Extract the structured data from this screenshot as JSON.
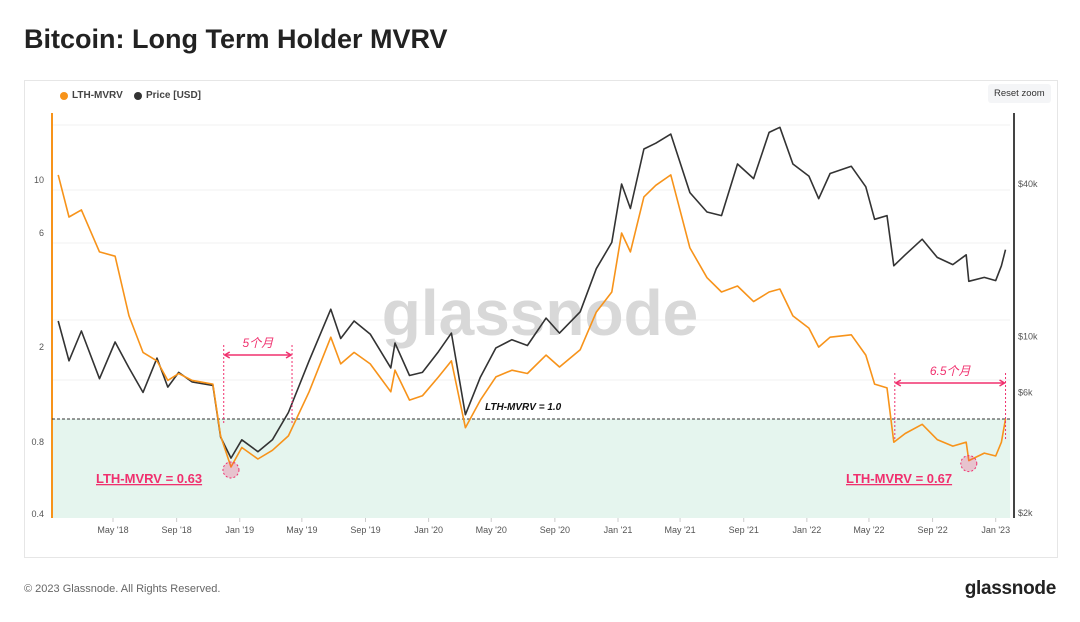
{
  "title": "Bitcoin: Long Term Holder MVRV",
  "reset_zoom": "Reset zoom",
  "footer": "© 2023 Glassnode. All Rights Reserved.",
  "brand": "glassnode",
  "watermark": "glassnode",
  "chart_data": {
    "type": "line",
    "title": "Bitcoin: Long Term Holder MVRV",
    "legend": [
      {
        "name": "LTH-MVRV",
        "color": "#f7931a"
      },
      {
        "name": "Price [USD]",
        "color": "#333333"
      }
    ],
    "x_ticks": [
      {
        "date": "2018-05-01",
        "label": "May '18"
      },
      {
        "date": "2018-09-01",
        "label": "Sep '18"
      },
      {
        "date": "2019-01-01",
        "label": "Jan '19"
      },
      {
        "date": "2019-05-01",
        "label": "May '19"
      },
      {
        "date": "2019-09-01",
        "label": "Sep '19"
      },
      {
        "date": "2020-01-01",
        "label": "Jan '20"
      },
      {
        "date": "2020-05-01",
        "label": "May '20"
      },
      {
        "date": "2020-09-01",
        "label": "Sep '20"
      },
      {
        "date": "2021-01-01",
        "label": "Jan '21"
      },
      {
        "date": "2021-05-01",
        "label": "May '21"
      },
      {
        "date": "2021-09-01",
        "label": "Sep '21"
      },
      {
        "date": "2022-01-01",
        "label": "Jan '22"
      },
      {
        "date": "2022-05-01",
        "label": "May '22"
      },
      {
        "date": "2022-09-01",
        "label": "Sep '22"
      },
      {
        "date": "2023-01-01",
        "label": "Jan '23"
      }
    ],
    "left_axis": {
      "scale": "log",
      "range": [
        0.4,
        16
      ],
      "ticks": [
        {
          "v": 10,
          "label": "10"
        },
        {
          "v": 6,
          "label": "6"
        },
        {
          "v": 2,
          "label": "2"
        },
        {
          "v": 0.8,
          "label": "0.8"
        },
        {
          "v": 0.4,
          "label": "0.4"
        }
      ]
    },
    "right_axis": {
      "scale": "log",
      "range": [
        2000,
        75000
      ],
      "ticks": [
        {
          "v": 40000,
          "label": "$40k"
        },
        {
          "v": 10000,
          "label": "$10k"
        },
        {
          "v": 6000,
          "label": "$6k"
        },
        {
          "v": 2000,
          "label": "$2k"
        }
      ]
    },
    "series": [
      {
        "name": "Price [USD]",
        "axis": "right",
        "color": "#333333",
        "points": [
          [
            "2018-01-15",
            11500
          ],
          [
            "2018-02-05",
            8000
          ],
          [
            "2018-03-01",
            10500
          ],
          [
            "2018-04-05",
            6800
          ],
          [
            "2018-05-05",
            9500
          ],
          [
            "2018-06-01",
            7500
          ],
          [
            "2018-06-28",
            6000
          ],
          [
            "2018-07-25",
            8200
          ],
          [
            "2018-08-15",
            6300
          ],
          [
            "2018-09-05",
            7200
          ],
          [
            "2018-10-01",
            6600
          ],
          [
            "2018-11-10",
            6400
          ],
          [
            "2018-11-25",
            4000
          ],
          [
            "2018-12-15",
            3300
          ],
          [
            "2019-01-05",
            3900
          ],
          [
            "2019-02-05",
            3500
          ],
          [
            "2019-03-05",
            3900
          ],
          [
            "2019-04-05",
            5000
          ],
          [
            "2019-05-15",
            8000
          ],
          [
            "2019-06-26",
            12800
          ],
          [
            "2019-07-15",
            9800
          ],
          [
            "2019-08-10",
            11500
          ],
          [
            "2019-09-10",
            10200
          ],
          [
            "2019-10-20",
            7500
          ],
          [
            "2019-10-28",
            9400
          ],
          [
            "2019-11-25",
            7000
          ],
          [
            "2019-12-20",
            7200
          ],
          [
            "2020-01-20",
            8700
          ],
          [
            "2020-02-14",
            10300
          ],
          [
            "2020-03-12",
            4900
          ],
          [
            "2020-04-10",
            6900
          ],
          [
            "2020-05-10",
            9000
          ],
          [
            "2020-06-10",
            9700
          ],
          [
            "2020-07-10",
            9200
          ],
          [
            "2020-08-15",
            11800
          ],
          [
            "2020-09-10",
            10300
          ],
          [
            "2020-10-20",
            12500
          ],
          [
            "2020-11-20",
            18500
          ],
          [
            "2020-12-20",
            23500
          ],
          [
            "2021-01-08",
            40000
          ],
          [
            "2021-01-25",
            32000
          ],
          [
            "2021-02-20",
            55000
          ],
          [
            "2021-03-15",
            58000
          ],
          [
            "2021-04-13",
            63000
          ],
          [
            "2021-05-20",
            37000
          ],
          [
            "2021-06-22",
            31000
          ],
          [
            "2021-07-20",
            30000
          ],
          [
            "2021-08-20",
            48000
          ],
          [
            "2021-09-20",
            42000
          ],
          [
            "2021-10-20",
            64000
          ],
          [
            "2021-11-10",
            67000
          ],
          [
            "2021-12-05",
            48000
          ],
          [
            "2022-01-05",
            43000
          ],
          [
            "2022-01-24",
            35000
          ],
          [
            "2022-02-15",
            44000
          ],
          [
            "2022-03-28",
            47000
          ],
          [
            "2022-04-25",
            39000
          ],
          [
            "2022-05-12",
            29000
          ],
          [
            "2022-06-05",
            30000
          ],
          [
            "2022-06-18",
            19000
          ],
          [
            "2022-07-10",
            21000
          ],
          [
            "2022-08-12",
            24200
          ],
          [
            "2022-09-10",
            20500
          ],
          [
            "2022-10-10",
            19200
          ],
          [
            "2022-11-05",
            21000
          ],
          [
            "2022-11-10",
            16500
          ],
          [
            "2022-12-10",
            17100
          ],
          [
            "2023-01-01",
            16600
          ],
          [
            "2023-01-12",
            19000
          ],
          [
            "2023-01-20",
            22000
          ]
        ]
      },
      {
        "name": "LTH-MVRV",
        "axis": "left",
        "color": "#f7931a",
        "points": [
          [
            "2018-01-15",
            10.5
          ],
          [
            "2018-02-05",
            7
          ],
          [
            "2018-03-01",
            7.5
          ],
          [
            "2018-04-05",
            5
          ],
          [
            "2018-05-05",
            4.8
          ],
          [
            "2018-06-01",
            2.7
          ],
          [
            "2018-06-28",
            1.9
          ],
          [
            "2018-07-25",
            1.75
          ],
          [
            "2018-08-15",
            1.45
          ],
          [
            "2018-09-05",
            1.55
          ],
          [
            "2018-10-01",
            1.45
          ],
          [
            "2018-11-10",
            1.4
          ],
          [
            "2018-11-25",
            0.85
          ],
          [
            "2018-12-15",
            0.63
          ],
          [
            "2019-01-05",
            0.76
          ],
          [
            "2019-02-05",
            0.68
          ],
          [
            "2019-03-05",
            0.74
          ],
          [
            "2019-04-05",
            0.85
          ],
          [
            "2019-05-15",
            1.3
          ],
          [
            "2019-06-26",
            2.2
          ],
          [
            "2019-07-15",
            1.7
          ],
          [
            "2019-08-10",
            1.9
          ],
          [
            "2019-09-10",
            1.7
          ],
          [
            "2019-10-20",
            1.3
          ],
          [
            "2019-10-28",
            1.6
          ],
          [
            "2019-11-25",
            1.2
          ],
          [
            "2019-12-20",
            1.25
          ],
          [
            "2020-01-20",
            1.5
          ],
          [
            "2020-02-14",
            1.75
          ],
          [
            "2020-03-12",
            0.92
          ],
          [
            "2020-04-10",
            1.2
          ],
          [
            "2020-05-10",
            1.5
          ],
          [
            "2020-06-10",
            1.6
          ],
          [
            "2020-07-10",
            1.55
          ],
          [
            "2020-08-15",
            1.85
          ],
          [
            "2020-09-10",
            1.65
          ],
          [
            "2020-10-20",
            1.95
          ],
          [
            "2020-11-20",
            2.8
          ],
          [
            "2020-12-20",
            3.4
          ],
          [
            "2021-01-08",
            6
          ],
          [
            "2021-01-25",
            5
          ],
          [
            "2021-02-20",
            8.5
          ],
          [
            "2021-03-15",
            9.5
          ],
          [
            "2021-04-13",
            10.5
          ],
          [
            "2021-05-20",
            5.2
          ],
          [
            "2021-06-22",
            3.9
          ],
          [
            "2021-07-20",
            3.4
          ],
          [
            "2021-08-20",
            3.6
          ],
          [
            "2021-09-20",
            3.1
          ],
          [
            "2021-10-20",
            3.4
          ],
          [
            "2021-11-10",
            3.5
          ],
          [
            "2021-12-05",
            2.7
          ],
          [
            "2022-01-05",
            2.4
          ],
          [
            "2022-01-24",
            2.0
          ],
          [
            "2022-02-15",
            2.2
          ],
          [
            "2022-03-28",
            2.25
          ],
          [
            "2022-04-25",
            1.85
          ],
          [
            "2022-05-12",
            1.4
          ],
          [
            "2022-06-05",
            1.35
          ],
          [
            "2022-06-18",
            0.8
          ],
          [
            "2022-07-10",
            0.87
          ],
          [
            "2022-08-12",
            0.95
          ],
          [
            "2022-09-10",
            0.82
          ],
          [
            "2022-10-10",
            0.77
          ],
          [
            "2022-11-05",
            0.8
          ],
          [
            "2022-11-10",
            0.67
          ],
          [
            "2022-12-10",
            0.72
          ],
          [
            "2023-01-01",
            0.7
          ],
          [
            "2023-01-12",
            0.8
          ],
          [
            "2023-01-20",
            1.0
          ]
        ]
      }
    ],
    "threshold": {
      "value": 1.0,
      "label": "LTH-MVRV = 1.0"
    },
    "annotations": [
      {
        "label": "5个月",
        "from": "2018-12-01",
        "to": "2019-04-12"
      },
      {
        "label": "6.5个月",
        "from": "2022-06-20",
        "to": "2023-01-20"
      }
    ],
    "callouts": [
      {
        "label": "LTH-MVRV = 0.63",
        "date": "2018-12-15",
        "value": 0.63
      },
      {
        "label": "LTH-MVRV = 0.67",
        "date": "2022-11-10",
        "value": 0.67
      }
    ]
  }
}
